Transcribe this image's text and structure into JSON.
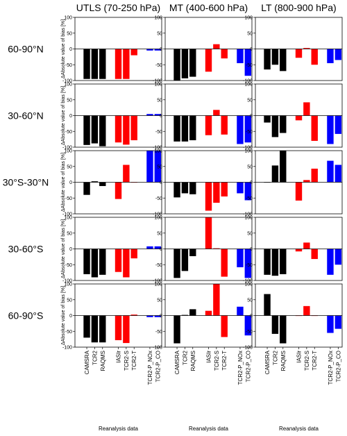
{
  "chart_data": {
    "type": "bar",
    "ylabel": "ΔAbsolute value of bias [%]",
    "xlabel": "Reanalysis data",
    "ylim": [
      -100,
      100
    ],
    "yticks": [
      -100,
      -50,
      0,
      50,
      100
    ],
    "categories": [
      "CAMSRA",
      "TCR2",
      "RAQMS",
      "IASIr",
      "TCR2-S",
      "TCR2-T",
      "TCR2-P_NOx",
      "TCR2-P_CO"
    ],
    "category_colors": [
      "#000000",
      "#000000",
      "#000000",
      "#ff0000",
      "#ff0000",
      "#ff0000",
      "#0000ff",
      "#0000ff"
    ],
    "columns": [
      "UTLS (70-250 hPa)",
      "MT (400-600 hPa)",
      "LT (800-900 hPa)"
    ],
    "rows": [
      "60-90°N",
      "30-60°N",
      "30°S-30°N",
      "30-60°S",
      "60-90°S"
    ],
    "values": [
      [
        [
          -95,
          -95,
          -95,
          -95,
          -95,
          -20,
          -5,
          -5
        ],
        [
          -100,
          -93,
          -88,
          -72,
          15,
          -30,
          -45,
          -85
        ],
        [
          -65,
          -50,
          -70,
          -28,
          3,
          -50,
          -45,
          -35
        ]
      ],
      [
        [
          -93,
          -88,
          -97,
          -85,
          -92,
          -78,
          5,
          5
        ],
        [
          -82,
          -82,
          -78,
          -62,
          18,
          -60,
          -90,
          -85
        ],
        [
          -22,
          -68,
          -55,
          -15,
          42,
          -80,
          -90,
          -58
        ]
      ],
      [
        [
          -40,
          3,
          -12,
          -53,
          55,
          0,
          100,
          100
        ],
        [
          -48,
          -35,
          -38,
          -90,
          -65,
          -45,
          -35,
          -57
        ],
        [
          0,
          53,
          100,
          -58,
          7,
          43,
          68,
          55
        ]
      ],
      [
        [
          -80,
          -90,
          -82,
          -73,
          -90,
          -30,
          8,
          8
        ],
        [
          -92,
          -70,
          -23,
          100,
          2,
          -88,
          -58,
          -92
        ],
        [
          -82,
          -85,
          -80,
          -8,
          20,
          -32,
          -82,
          -50
        ]
      ],
      [
        [
          -70,
          -85,
          -85,
          -78,
          -87,
          3,
          -5,
          -5
        ],
        [
          -88,
          2,
          20,
          15,
          100,
          -68,
          28,
          -63
        ],
        [
          68,
          -58,
          -88,
          0,
          30,
          0,
          -55,
          -42
        ]
      ]
    ],
    "grid": false,
    "legend": "none"
  }
}
